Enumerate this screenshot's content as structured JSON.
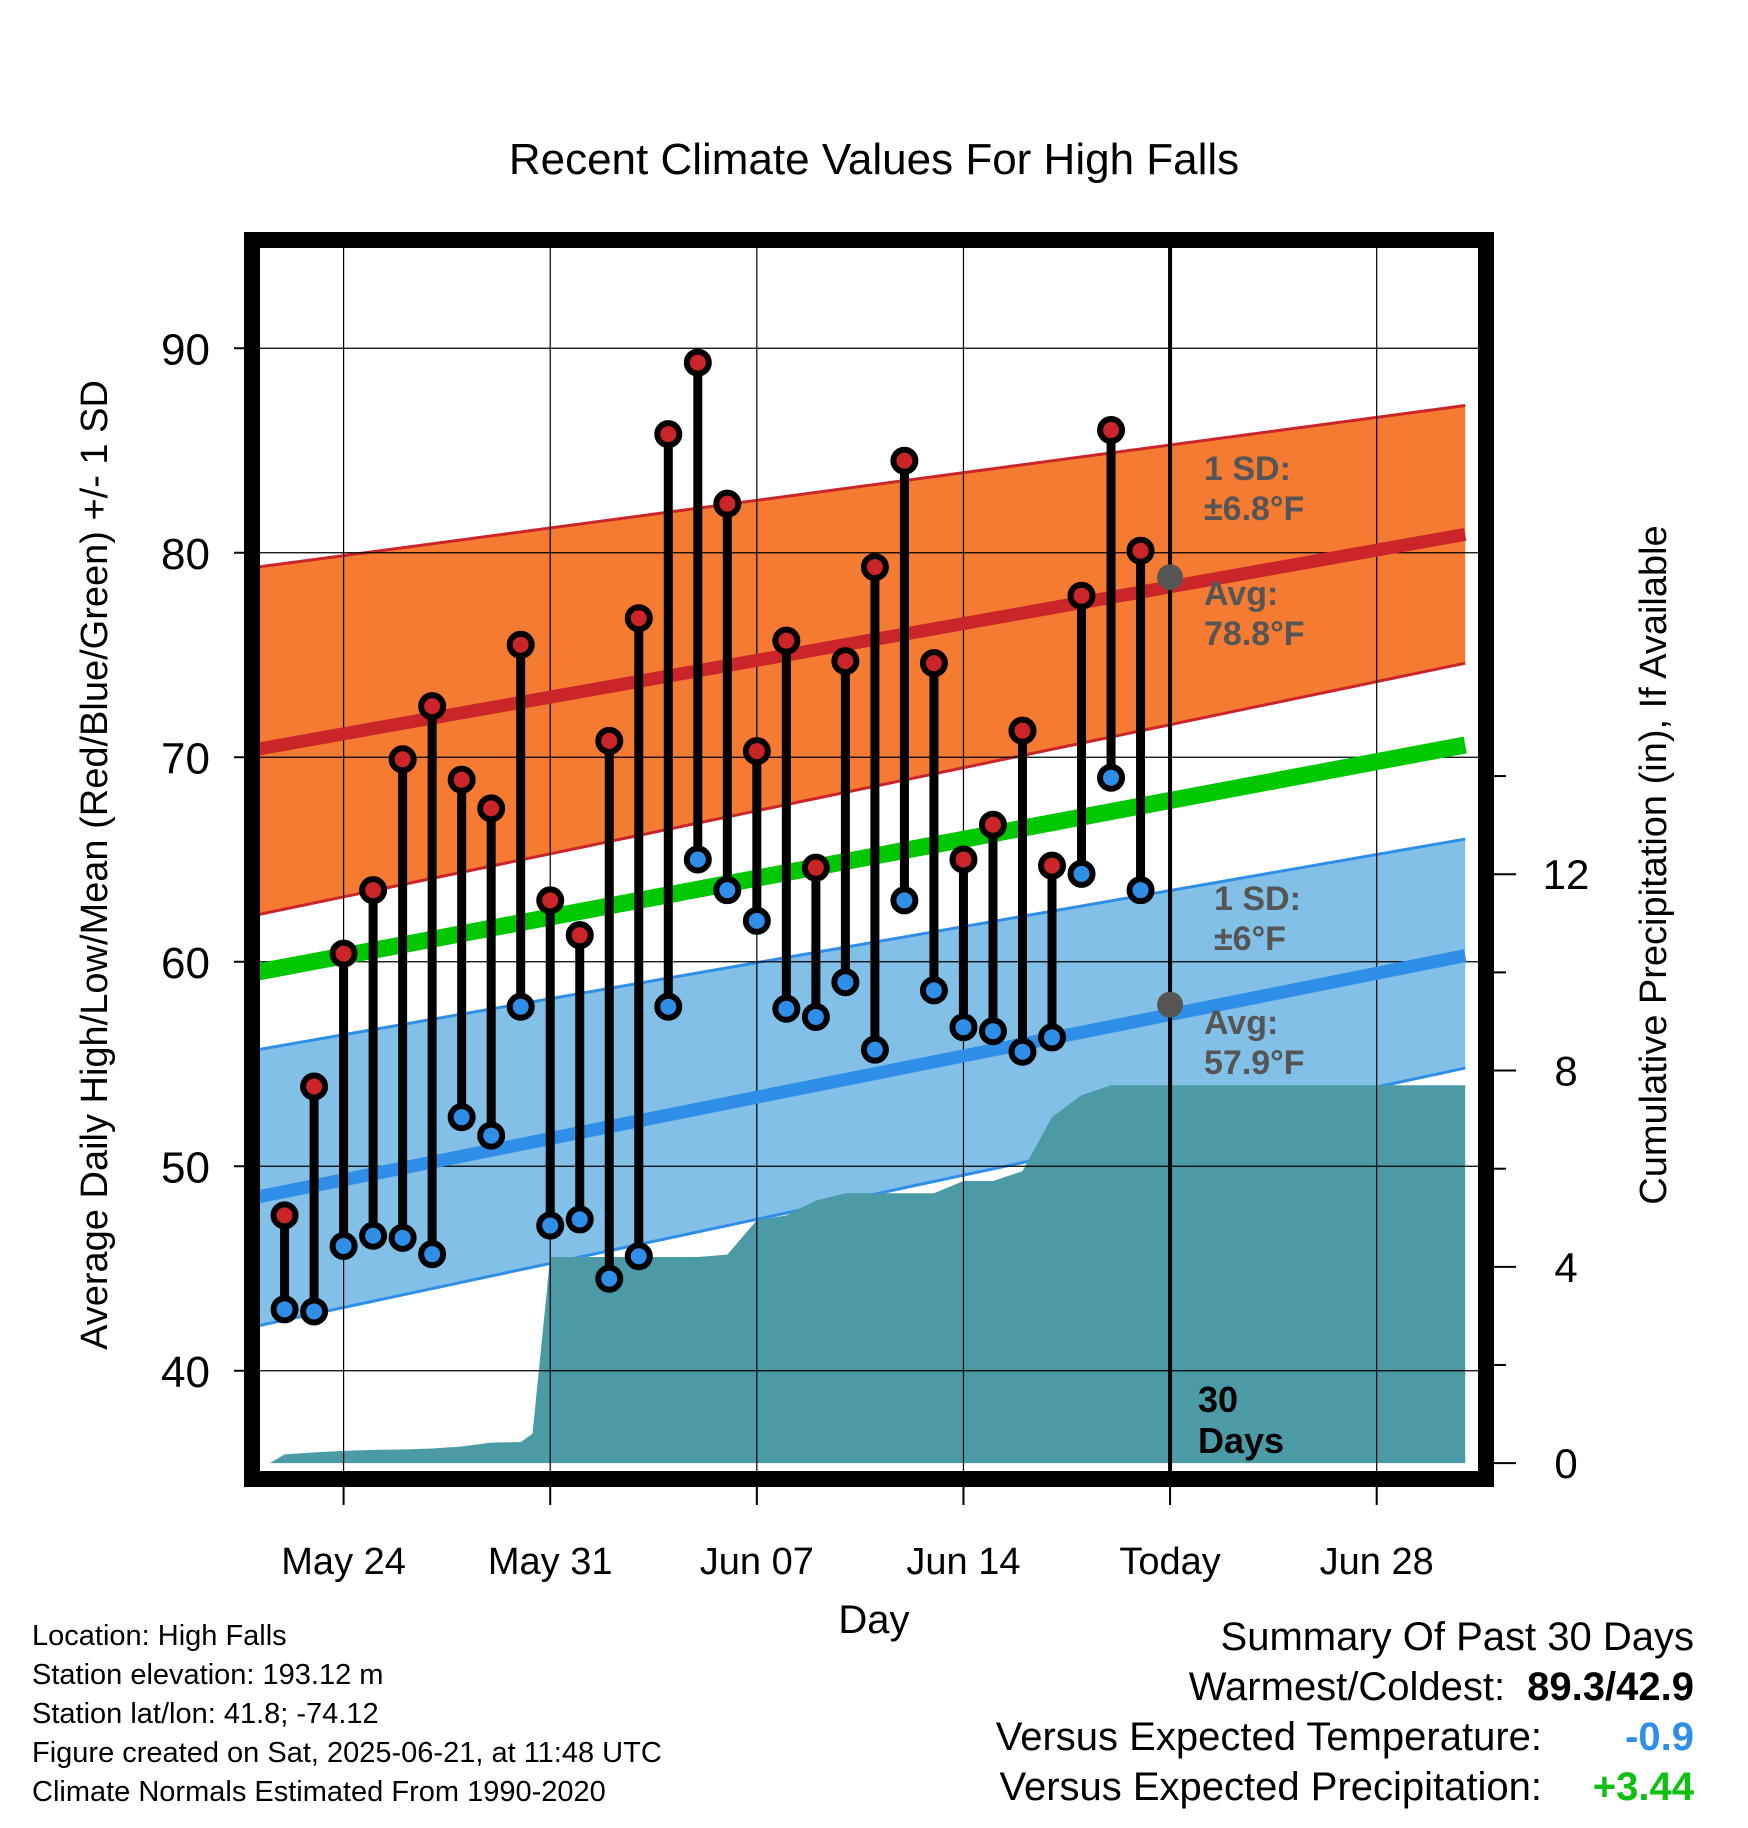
{
  "chart_data": {
    "type": "line",
    "title": "Recent Climate Values For High Falls",
    "xlabel": "Day",
    "ylabel": "Average Daily High/Low/Mean (Red/Blue/Green) +/- 1 SD",
    "y2label": "Cumulative Precipitation (in), If Available",
    "xlim": [
      -0.9,
      40.5
    ],
    "ylim": [
      35,
      95
    ],
    "y2lim": [
      -0.2,
      24.8
    ],
    "x_ticks": [
      {
        "x": 2,
        "label": "May 24"
      },
      {
        "x": 9,
        "label": "May 31"
      },
      {
        "x": 16,
        "label": "Jun 07"
      },
      {
        "x": 23,
        "label": "Jun 14"
      },
      {
        "x": 30,
        "label": "Today"
      },
      {
        "x": 37,
        "label": "Jun 28"
      }
    ],
    "y_ticks": [
      40,
      50,
      60,
      70,
      80,
      90
    ],
    "y2_ticks": [
      0,
      4,
      8,
      12
    ],
    "grid": true,
    "normals": {
      "x_range": [
        -0.9,
        40
      ],
      "high_mean": [
        70.4,
        80.9
      ],
      "high_upper": [
        79.3,
        87.2
      ],
      "high_lower": [
        62.3,
        74.6
      ],
      "low_mean": [
        48.5,
        60.3
      ],
      "low_upper": [
        55.7,
        66.0
      ],
      "low_lower": [
        42.2,
        54.8
      ],
      "daily_mean": [
        59.5,
        70.6
      ]
    },
    "series": [
      {
        "name": "High",
        "color": "#cc2529",
        "values": [
          47.6,
          53.9,
          60.4,
          63.5,
          69.9,
          72.5,
          68.9,
          67.5,
          75.5,
          63.0,
          61.3,
          70.8,
          76.8,
          85.8,
          89.3,
          82.4,
          70.3,
          75.7,
          64.6,
          74.7,
          79.3,
          84.5,
          74.6,
          65.0,
          66.7,
          71.3,
          64.7,
          77.9,
          86.0,
          80.1
        ]
      },
      {
        "name": "Low",
        "color": "#2f8fe8",
        "values": [
          43.0,
          42.9,
          46.1,
          46.6,
          46.5,
          45.7,
          52.4,
          51.5,
          57.8,
          47.1,
          47.4,
          44.5,
          45.6,
          57.8,
          65.0,
          63.5,
          62.0,
          57.7,
          57.3,
          59.0,
          55.7,
          63.0,
          58.6,
          56.8,
          56.6,
          55.6,
          56.3,
          64.3,
          69.0,
          63.5
        ]
      }
    ],
    "precip_cumulative": {
      "x": [
        -0.5,
        0,
        1,
        2,
        3,
        4,
        5,
        6,
        7,
        8,
        8.4,
        9,
        10,
        11,
        12,
        13,
        14,
        15,
        16,
        17,
        18,
        19,
        20,
        21,
        22,
        23,
        24,
        25,
        26,
        27,
        28,
        29,
        40
      ],
      "values": [
        0.0,
        0.18,
        0.22,
        0.25,
        0.27,
        0.28,
        0.3,
        0.34,
        0.42,
        0.43,
        0.6,
        4.2,
        4.2,
        4.2,
        4.2,
        4.2,
        4.2,
        4.25,
        4.95,
        5.05,
        5.35,
        5.5,
        5.5,
        5.5,
        5.5,
        5.75,
        5.75,
        5.95,
        7.05,
        7.5,
        7.7,
        7.7,
        7.7
      ]
    },
    "annotations": {
      "high_sd_label": "1 SD:",
      "high_sd_value": "±6.8°F",
      "high_avg_label": "Avg:",
      "high_avg_value": "78.8°F",
      "high_avg": 78.8,
      "low_sd_label": "1 SD:",
      "low_sd_value": "±6°F",
      "low_avg_label": "Avg:",
      "low_avg_value": "57.9°F",
      "low_avg": 57.9,
      "today_x": 30,
      "window_number": "30",
      "window_unit": "Days"
    },
    "colors": {
      "high_band": "#f47b31",
      "high_line": "#cc2529",
      "low_band": "#82c0e8",
      "low_line": "#2f8fe8",
      "mean_line": "#00c800",
      "precip": "#4a9ba6",
      "annotation": "#555555"
    }
  },
  "footer": {
    "location": "Location: High Falls",
    "elevation": "Station elevation: 193.12 m",
    "latlon": "Station lat/lon: 41.8; -74.12",
    "created": "Figure created on Sat, 2025-06-21, at 11:48 UTC",
    "normals": "Climate Normals Estimated From 1990-2020"
  },
  "summary": {
    "title": "Summary Of Past 30 Days",
    "warmest_label": "Warmest/Coldest:",
    "warmest_value": "89.3",
    "coldest_value": "42.9",
    "temp_label": "Versus Expected Temperature:",
    "temp_value": "-0.9",
    "temp_color": "#2f8fe8",
    "precip_label": "Versus Expected Precipitation:",
    "precip_value": "+3.44",
    "precip_color": "#10c010"
  }
}
